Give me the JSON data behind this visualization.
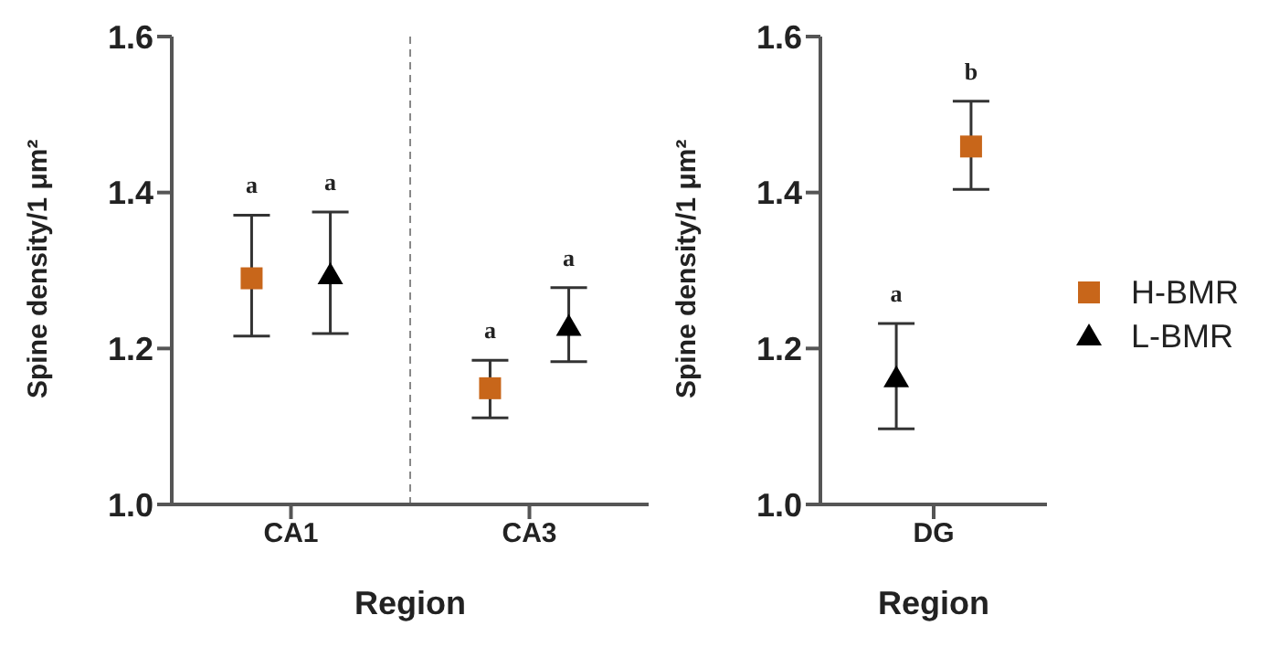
{
  "chart_data": [
    {
      "type": "scatter",
      "ylabel": "Spine density/1 μm²",
      "xlabel": "Region",
      "categories": [
        "CA1",
        "CA3"
      ],
      "series": [
        {
          "color": "#c8661a",
          "marker": "square",
          "values": [
            1.29,
            1.149
          ],
          "errors": [
            [
              1.216,
              1.371
            ],
            [
              1.111,
              1.185
            ]
          ]
        },
        {
          "color": "#000000",
          "marker": "triangle",
          "values": [
            1.294,
            1.228
          ],
          "errors": [
            [
              1.219,
              1.375
            ],
            [
              1.183,
              1.278
            ]
          ]
        }
      ],
      "ylim": [
        1.0,
        1.6
      ],
      "yticks": [
        {
          "value": 1,
          "label": "1.0"
        },
        1.2,
        1.4,
        1.6
      ],
      "grid": false,
      "legend": false,
      "annotations": [
        "a",
        "a",
        "a",
        "a"
      ]
    },
    {
      "type": "scatter",
      "ylabel": "Spine density/1 μm²",
      "xlabel": "Region",
      "categories": [
        "DG"
      ],
      "series": [
        {
          "name": "L-BMR",
          "color": "#000000",
          "marker": "triangle",
          "values": [
            1.162
          ],
          "errors": [
            [
              1.097,
              1.232
            ]
          ]
        },
        {
          "name": "H-BMR",
          "color": "#c8661a",
          "marker": "square",
          "values": [
            1.459
          ],
          "errors": [
            [
              1.404,
              1.517
            ]
          ]
        }
      ],
      "ylim": [
        1.0,
        1.6
      ],
      "yticks": [
        {
          "value": 1,
          "label": "1.0"
        },
        1.2,
        1.4,
        1.6
      ],
      "grid": false,
      "legend": "right",
      "annotations": [
        "a",
        "b"
      ]
    }
  ]
}
